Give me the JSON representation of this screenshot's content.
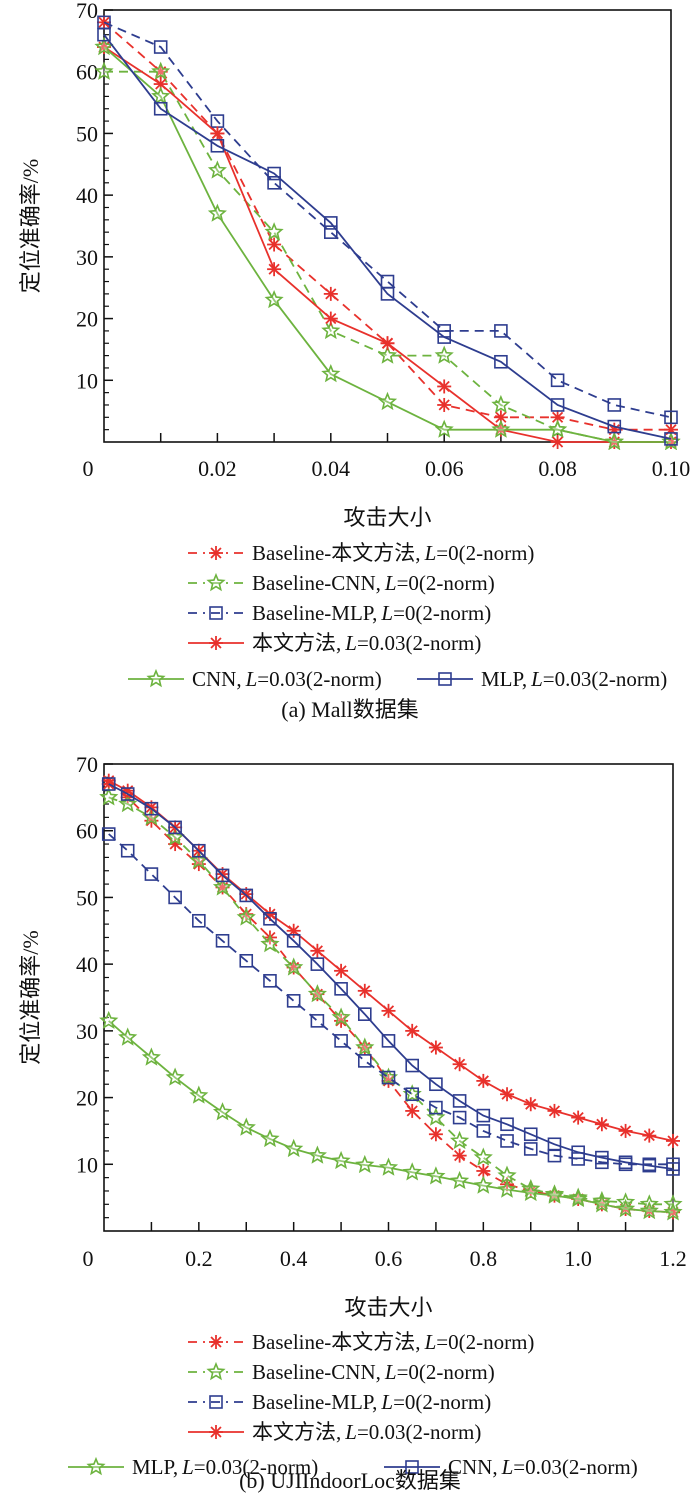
{
  "chart_data": [
    {
      "type": "line",
      "caption": "(a) Mall数据集",
      "xlabel": "攻击大小",
      "ylabel": "定位准确率/%",
      "xlim": [
        0,
        0.1
      ],
      "ylim": [
        0,
        70
      ],
      "xticks": [
        "0",
        "0.02",
        "0.04",
        "0.06",
        "0.08",
        "0.10"
      ],
      "yticks": [
        "10",
        "20",
        "30",
        "40",
        "50",
        "60",
        "70"
      ],
      "x": [
        0,
        0.01,
        0.02,
        0.03,
        0.04,
        0.05,
        0.06,
        0.07,
        0.08,
        0.09,
        0.1
      ],
      "series": [
        {
          "name": "Baseline-本文方法, L=0(2-norm)",
          "label_prefix": "Baseline-本文方法,",
          "label_suffix": "=0(2-norm)",
          "color": "#e8312c",
          "dash": true,
          "marker": "asterisk",
          "values": [
            68,
            60,
            50,
            32,
            24,
            16,
            6,
            4,
            4,
            2,
            2
          ]
        },
        {
          "name": "Baseline-CNN, L=0(2-norm)",
          "label_prefix": "Baseline-CNN,",
          "label_suffix": "=0(2-norm)",
          "color": "#6db33f",
          "dash": true,
          "marker": "star",
          "values": [
            60,
            60,
            44,
            34,
            18,
            14,
            14,
            6,
            2,
            0,
            0
          ]
        },
        {
          "name": "Baseline-MLP, L=0(2-norm)",
          "label_prefix": "Baseline-MLP,",
          "label_suffix": "=0(2-norm)",
          "color": "#2e3d8f",
          "dash": true,
          "marker": "square",
          "values": [
            68,
            64,
            52,
            42,
            34,
            26,
            18,
            18,
            10,
            6,
            4
          ]
        },
        {
          "name": "本文方法, L=0.03(2-norm)",
          "label_prefix": "本文方法,",
          "label_suffix": "=0.03(2-norm)",
          "color": "#e8312c",
          "dash": false,
          "marker": "asterisk",
          "values": [
            64,
            58,
            50,
            28,
            20,
            16,
            9,
            2,
            0,
            0,
            0
          ]
        },
        {
          "name": "CNN, L=0.03(2-norm)",
          "label_prefix": "CNN,",
          "label_suffix": "=0.03(2-norm)",
          "color": "#6db33f",
          "dash": false,
          "marker": "star",
          "values": [
            64,
            56,
            37,
            23,
            11,
            6.5,
            2,
            2,
            2,
            0,
            0
          ]
        },
        {
          "name": "MLP, L=0.03(2-norm)",
          "label_prefix": "MLP,",
          "label_suffix": "=0.03(2-norm)",
          "color": "#2e3d8f",
          "dash": false,
          "marker": "square",
          "values": [
            66,
            54,
            48,
            43.5,
            35.5,
            24,
            17,
            13,
            6,
            2.5,
            0.5
          ]
        }
      ],
      "legend_position": "bottom"
    },
    {
      "type": "line",
      "caption": "(b) UJIIndoorLoc数据集",
      "xlabel": "攻击大小",
      "ylabel": "定位准确率/%",
      "xlim": [
        0,
        1.2
      ],
      "ylim": [
        0,
        70
      ],
      "xticks": [
        "0",
        "0.2",
        "0.4",
        "0.6",
        "0.8",
        "1.0",
        "1.2"
      ],
      "yticks": [
        "10",
        "20",
        "30",
        "40",
        "50",
        "60",
        "70"
      ],
      "x": [
        0.01,
        0.05,
        0.1,
        0.15,
        0.2,
        0.25,
        0.3,
        0.35,
        0.4,
        0.45,
        0.5,
        0.55,
        0.6,
        0.65,
        0.7,
        0.75,
        0.8,
        0.85,
        0.9,
        0.95,
        1.0,
        1.05,
        1.1,
        1.15,
        1.2
      ],
      "series": [
        {
          "name": "Baseline-本文方法, L=0(2-norm)",
          "label_prefix": "Baseline-本文方法,",
          "label_suffix": "=0(2-norm)",
          "color": "#e8312c",
          "dash": true,
          "marker": "asterisk",
          "values": [
            67,
            65,
            61.5,
            58,
            55,
            51.5,
            47.5,
            44,
            39.5,
            35.5,
            31.5,
            27.5,
            22.5,
            18,
            14.5,
            11.3,
            9,
            7,
            6,
            5.3,
            4.8,
            4,
            3.3,
            3,
            2.8
          ]
        },
        {
          "name": "Baseline-CNN, L=0(2-norm)",
          "label_prefix": "Baseline-CNN,",
          "label_suffix": "=0(2-norm)",
          "color": "#6db33f",
          "dash": true,
          "marker": "star",
          "values": [
            65,
            64,
            62,
            59,
            55.5,
            51.5,
            47,
            43,
            39.5,
            35.5,
            32,
            27.5,
            23,
            20.5,
            17,
            13.5,
            11,
            8.3,
            6.3,
            5.5,
            5,
            4.5,
            4.3,
            4,
            4
          ]
        },
        {
          "name": "Baseline-MLP, L=0(2-norm)",
          "label_prefix": "Baseline-MLP,",
          "label_suffix": "=0(2-norm)",
          "color": "#2e3d8f",
          "dash": true,
          "marker": "square",
          "values": [
            59.5,
            57,
            53.5,
            50,
            46.5,
            43.5,
            40.5,
            37.5,
            34.5,
            31.5,
            28.5,
            25.5,
            23,
            20.5,
            18.5,
            17,
            15,
            13.5,
            12.3,
            11.3,
            10.8,
            10.3,
            10,
            10,
            10
          ]
        },
        {
          "name": "本文方法, L=0.03(2-norm)",
          "label_prefix": "本文方法,",
          "label_suffix": "=0.03(2-norm)",
          "color": "#e8312c",
          "dash": false,
          "marker": "asterisk",
          "values": [
            67.5,
            66,
            63.5,
            60.5,
            57,
            53.5,
            50.5,
            47.5,
            45,
            42,
            39,
            36,
            33,
            30,
            27.5,
            25,
            22.5,
            20.5,
            19,
            18,
            17,
            16,
            15,
            14.3,
            13.5
          ]
        },
        {
          "name": "MLP, L=0.03(2-norm)",
          "label_prefix": "MLP,",
          "label_suffix": "=0.03(2-norm)",
          "color": "#6db33f",
          "dash": false,
          "marker": "star",
          "values": [
            31.5,
            29,
            26,
            23,
            20.3,
            17.8,
            15.5,
            13.8,
            12.3,
            11.3,
            10.5,
            9.9,
            9.5,
            8.8,
            8.2,
            7.5,
            6.8,
            6.2,
            5.7,
            5.3,
            4.8,
            4,
            3.3,
            3,
            2.8
          ]
        },
        {
          "name": "CNN, L=0.03(2-norm)",
          "label_prefix": "CNN,",
          "label_suffix": "=0.03(2-norm)",
          "color": "#2e3d8f",
          "dash": false,
          "marker": "square",
          "values": [
            67,
            65.5,
            63.3,
            60.5,
            57,
            53.3,
            50.3,
            46.8,
            43.5,
            40,
            36.3,
            32.5,
            28.5,
            24.8,
            22,
            19.5,
            17.3,
            16,
            14.5,
            13,
            11.8,
            11,
            10.3,
            9.8,
            9.3
          ]
        }
      ],
      "legend_position": "bottom"
    }
  ],
  "legend_italic_letter": "L"
}
